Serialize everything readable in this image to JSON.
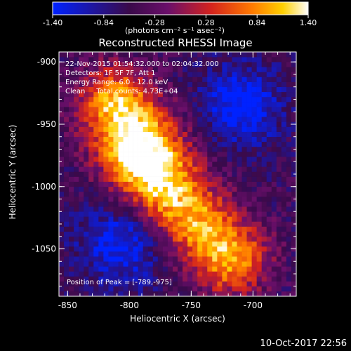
{
  "colorbar": {
    "ticks": [
      "-1.40",
      "-0.84",
      "-0.28",
      "0.28",
      "0.84",
      "1.40"
    ],
    "unit_label": "(photons cm⁻² s⁻¹ asec⁻²)",
    "colors": {
      "low": "#0022ff",
      "mid": "#3a0a4a",
      "high": "#ffffff"
    }
  },
  "chart_data": {
    "type": "heatmap",
    "title": "Reconstructed RHESSI Image",
    "xlabel": "Heliocentric X (arcsec)",
    "ylabel": "Heliocentric Y (arcsec)",
    "xlim": [
      -857,
      -665
    ],
    "ylim": [
      -1088,
      -892
    ],
    "x_ticks": [
      "-850",
      "-800",
      "-750",
      "-700"
    ],
    "y_ticks": [
      "-900",
      "-950",
      "-1000",
      "-1050"
    ],
    "x_tick_values": [
      -850,
      -800,
      -750,
      -700
    ],
    "y_tick_values": [
      -900,
      -950,
      -1000,
      -1050
    ],
    "colorscale_range": [
      -1.4,
      1.4
    ],
    "peak": {
      "x": -789,
      "y": -975,
      "value": 1.4
    },
    "emission_ridge": [
      {
        "x": -810,
        "y": -935
      },
      {
        "x": -789,
        "y": -975
      },
      {
        "x": -760,
        "y": -1015
      },
      {
        "x": -720,
        "y": -1055
      }
    ],
    "annotations": [
      "22-Nov-2015 01:54:32.000 to 02:04:32.000",
      "Detectors: 1F 5F 7F, Att 1",
      "Energy Range: 6.0 - 12.0 keV",
      "Clean     Total counts: 4.73E+04",
      "Position of Peak = [-789,-975]"
    ]
  },
  "footer": {
    "timestamp": "10-Oct-2017 22:56"
  }
}
